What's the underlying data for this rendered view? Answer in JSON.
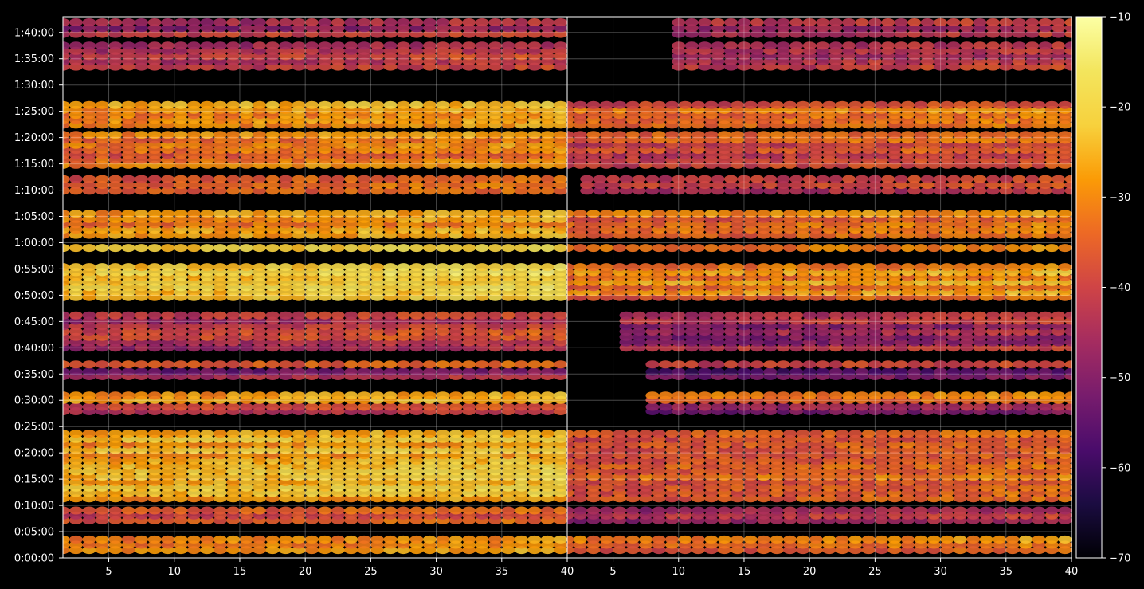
{
  "chart_data": {
    "type": "heatmap",
    "title": "",
    "colormap": "inferno",
    "background": "#000000",
    "grid": true,
    "panels": [
      {
        "name": "",
        "xlim": [
          1.5,
          40
        ],
        "x_ticks": [
          5,
          10,
          15,
          20,
          25,
          30,
          35,
          40
        ]
      },
      {
        "name": "",
        "xlim": [
          1.5,
          40
        ],
        "x_ticks": [
          5,
          10,
          15,
          20,
          25,
          30,
          35,
          40
        ]
      }
    ],
    "x_tick_labels": [
      "5",
      "10",
      "15",
      "20",
      "25",
      "30",
      "35",
      "40"
    ],
    "y_axis": {
      "unit": "h:mm:ss",
      "range_seconds": [
        0,
        6180
      ],
      "tick_seconds": [
        0,
        300,
        600,
        900,
        1200,
        1500,
        1800,
        2100,
        2400,
        2700,
        3000,
        3300,
        3600,
        3900,
        4200,
        4500,
        4800,
        5100,
        5400,
        5700,
        6000
      ],
      "tick_labels": [
        "0:00:00",
        "0:05:00",
        "0:10:00",
        "0:15:00",
        "0:20:00",
        "0:25:00",
        "0:30:00",
        "0:35:00",
        "0:40:00",
        "0:45:00",
        "0:50:00",
        "0:55:00",
        "1:00:00",
        "1:05:00",
        "1:10:00",
        "1:15:00",
        "1:20:00",
        "1:25:00",
        "1:30:00",
        "1:35:00",
        "1:40:00"
      ]
    },
    "colorbar": {
      "range": [
        -70,
        -10
      ],
      "ticks": [
        -70,
        -60,
        -50,
        -40,
        -30,
        -20,
        -10
      ],
      "tick_labels": [
        "−70",
        "−60",
        "−50",
        "−40",
        "−30",
        "−20",
        "−10"
      ]
    },
    "bands": [
      {
        "t_start": 60,
        "t_end": 240,
        "left_level": -30,
        "right_level": -34,
        "right_start": 1.5
      },
      {
        "t_start": 400,
        "t_end": 570,
        "left_level": -36,
        "right_level": -44,
        "right_start": 1.5
      },
      {
        "t_start": 650,
        "t_end": 1450,
        "left_level": -26,
        "right_level": -35,
        "right_start": 1.5
      },
      {
        "t_start": 1650,
        "t_end": 1750,
        "left_level": -42,
        "right_level": -50,
        "right_start": 8
      },
      {
        "t_start": 1780,
        "t_end": 1880,
        "left_level": -30,
        "right_level": -31,
        "right_start": 8
      },
      {
        "t_start": 2050,
        "t_end": 2150,
        "left_level": -48,
        "right_level": -52,
        "right_start": 8
      },
      {
        "t_start": 2180,
        "t_end": 2240,
        "left_level": -34,
        "right_level": -40,
        "right_start": 8
      },
      {
        "t_start": 2370,
        "t_end": 2800,
        "left_level": -42,
        "right_level": -46,
        "right_start": 6
      },
      {
        "t_start": 2950,
        "t_end": 3350,
        "left_level": -22,
        "right_level": -30,
        "right_start": 1.5
      },
      {
        "t_start": 3500,
        "t_end": 3580,
        "left_level": -22,
        "right_level": -30,
        "right_start": 1.5
      },
      {
        "t_start": 3660,
        "t_end": 3960,
        "left_level": -28,
        "right_level": -33,
        "right_start": 1.5
      },
      {
        "t_start": 4160,
        "t_end": 4360,
        "left_level": -36,
        "right_level": -42,
        "right_start": 3
      },
      {
        "t_start": 4460,
        "t_end": 4860,
        "left_level": -32,
        "right_level": -38,
        "right_start": 1.5
      },
      {
        "t_start": 4920,
        "t_end": 5200,
        "left_level": -28,
        "right_level": -34,
        "right_start": 1.5
      },
      {
        "t_start": 5580,
        "t_end": 5880,
        "left_level": -44,
        "right_level": -46,
        "right_start": 10
      },
      {
        "t_start": 5950,
        "t_end": 6150,
        "left_level": -44,
        "right_level": -46,
        "right_start": 10
      }
    ]
  }
}
